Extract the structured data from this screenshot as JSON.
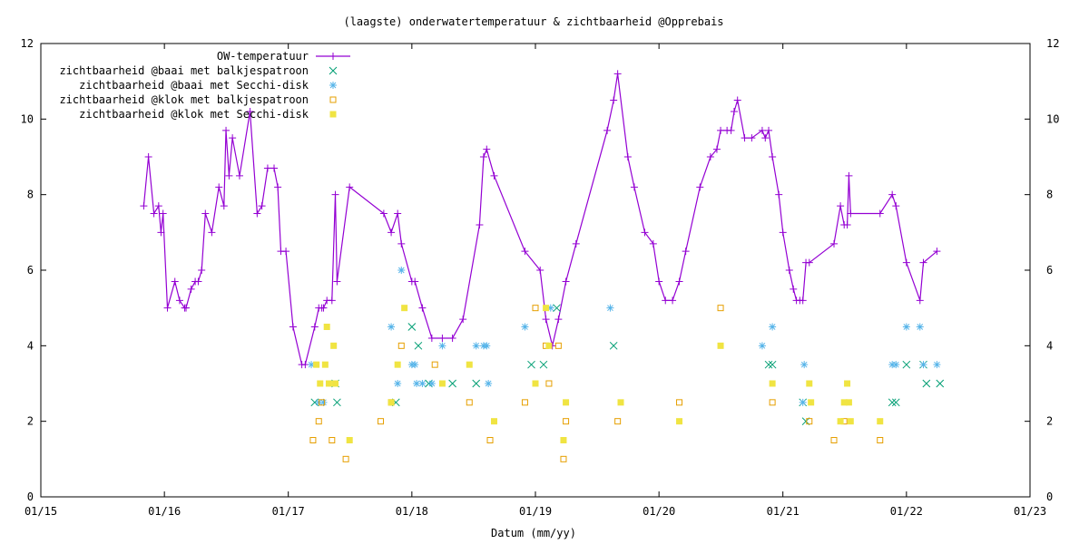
{
  "chart_data": {
    "type": "scatter",
    "title": "(laagste) onderwatertemperatuur & zichtbaarheid @Opprebais",
    "xlabel": "Datum (mm/yy)",
    "ylabel": "",
    "xticks": [
      "01/15",
      "01/16",
      "01/17",
      "01/18",
      "01/19",
      "01/20",
      "01/21",
      "01/22",
      "01/23"
    ],
    "xlim": [
      "2015-01-01",
      "2023-01-01"
    ],
    "ylim": [
      0,
      12
    ],
    "yticks": [
      0,
      2,
      4,
      6,
      8,
      10,
      12
    ],
    "y2ticks": [
      0,
      2,
      4,
      6,
      8,
      10,
      12
    ],
    "legend_position": "top-left",
    "grid": false,
    "colors": {
      "temperature": "#9400d3",
      "baai_balk": "#009e73",
      "baai_secchi": "#56b4e9",
      "klok_balk": "#e69f00",
      "klok_secchi": "#f0e442"
    },
    "series": [
      {
        "name": "OW-temperatuur",
        "style": "linespoints",
        "marker": "plus",
        "points": [
          [
            "2015-11-01",
            7.7
          ],
          [
            "2015-11-15",
            9.0
          ],
          [
            "2015-12-01",
            7.5
          ],
          [
            "2015-12-15",
            7.7
          ],
          [
            "2015-12-22",
            7.0
          ],
          [
            "2015-12-28",
            7.5
          ],
          [
            "2016-01-10",
            5.0
          ],
          [
            "2016-02-01",
            5.7
          ],
          [
            "2016-02-15",
            5.2
          ],
          [
            "2016-03-01",
            5.0
          ],
          [
            "2016-03-05",
            5.0
          ],
          [
            "2016-03-20",
            5.5
          ],
          [
            "2016-04-01",
            5.7
          ],
          [
            "2016-04-10",
            5.7
          ],
          [
            "2016-04-20",
            6.0
          ],
          [
            "2016-05-01",
            7.5
          ],
          [
            "2016-05-20",
            7.0
          ],
          [
            "2016-06-10",
            8.2
          ],
          [
            "2016-06-25",
            7.7
          ],
          [
            "2016-07-01",
            9.7
          ],
          [
            "2016-07-10",
            8.5
          ],
          [
            "2016-07-20",
            9.5
          ],
          [
            "2016-08-10",
            8.5
          ],
          [
            "2016-09-10",
            10.2
          ],
          [
            "2016-10-01",
            7.5
          ],
          [
            "2016-10-15",
            7.7
          ],
          [
            "2016-11-01",
            8.7
          ],
          [
            "2016-11-20",
            8.7
          ],
          [
            "2016-12-01",
            8.2
          ],
          [
            "2016-12-10",
            6.5
          ],
          [
            "2016-12-25",
            6.5
          ],
          [
            "2017-01-15",
            4.5
          ],
          [
            "2017-02-10",
            3.5
          ],
          [
            "2017-02-20",
            3.5
          ],
          [
            "2017-03-20",
            4.5
          ],
          [
            "2017-04-01",
            5.0
          ],
          [
            "2017-04-10",
            5.0
          ],
          [
            "2017-04-15",
            5.0
          ],
          [
            "2017-04-25",
            5.2
          ],
          [
            "2017-05-10",
            5.2
          ],
          [
            "2017-05-20",
            8.0
          ],
          [
            "2017-05-25",
            5.7
          ],
          [
            "2017-07-01",
            8.2
          ],
          [
            "2017-10-10",
            7.5
          ],
          [
            "2017-11-01",
            7.0
          ],
          [
            "2017-11-20",
            7.5
          ],
          [
            "2017-12-01",
            6.7
          ],
          [
            "2018-01-01",
            5.7
          ],
          [
            "2018-01-10",
            5.7
          ],
          [
            "2018-02-01",
            5.0
          ],
          [
            "2018-03-01",
            4.2
          ],
          [
            "2018-04-01",
            4.2
          ],
          [
            "2018-05-01",
            4.2
          ],
          [
            "2018-06-01",
            4.7
          ],
          [
            "2018-07-20",
            7.2
          ],
          [
            "2018-08-01",
            9.0
          ],
          [
            "2018-08-10",
            9.2
          ],
          [
            "2018-09-01",
            8.5
          ],
          [
            "2018-12-01",
            6.5
          ],
          [
            "2019-01-15",
            6.0
          ],
          [
            "2019-02-01",
            4.7
          ],
          [
            "2019-02-20",
            4.0
          ],
          [
            "2019-03-10",
            4.7
          ],
          [
            "2019-04-01",
            5.7
          ],
          [
            "2019-05-01",
            6.7
          ],
          [
            "2019-08-01",
            9.7
          ],
          [
            "2019-08-20",
            10.5
          ],
          [
            "2019-09-01",
            11.2
          ],
          [
            "2019-10-01",
            9.0
          ],
          [
            "2019-10-20",
            8.2
          ],
          [
            "2019-11-20",
            7.0
          ],
          [
            "2019-12-15",
            6.7
          ],
          [
            "2020-01-01",
            5.7
          ],
          [
            "2020-01-20",
            5.2
          ],
          [
            "2020-02-10",
            5.2
          ],
          [
            "2020-03-01",
            5.7
          ],
          [
            "2020-03-20",
            6.5
          ],
          [
            "2020-05-01",
            8.2
          ],
          [
            "2020-06-01",
            9.0
          ],
          [
            "2020-06-20",
            9.2
          ],
          [
            "2020-07-01",
            9.7
          ],
          [
            "2020-07-20",
            9.7
          ],
          [
            "2020-08-01",
            9.7
          ],
          [
            "2020-08-10",
            10.2
          ],
          [
            "2020-08-20",
            10.5
          ],
          [
            "2020-09-10",
            9.5
          ],
          [
            "2020-10-01",
            9.5
          ],
          [
            "2020-11-01",
            9.7
          ],
          [
            "2020-11-10",
            9.5
          ],
          [
            "2020-11-20",
            9.7
          ],
          [
            "2020-12-01",
            9.0
          ],
          [
            "2020-12-20",
            8.0
          ],
          [
            "2021-01-01",
            7.0
          ],
          [
            "2021-01-20",
            6.0
          ],
          [
            "2021-02-01",
            5.5
          ],
          [
            "2021-02-10",
            5.2
          ],
          [
            "2021-02-20",
            5.2
          ],
          [
            "2021-03-01",
            5.2
          ],
          [
            "2021-03-10",
            6.2
          ],
          [
            "2021-03-20",
            6.2
          ],
          [
            "2021-06-01",
            6.7
          ],
          [
            "2021-06-20",
            7.7
          ],
          [
            "2021-07-01",
            7.2
          ],
          [
            "2021-07-10",
            7.2
          ],
          [
            "2021-07-15",
            8.5
          ],
          [
            "2021-07-20",
            7.5
          ],
          [
            "2021-10-15",
            7.5
          ],
          [
            "2021-11-20",
            8.0
          ],
          [
            "2021-12-01",
            7.7
          ],
          [
            "2022-01-01",
            6.2
          ],
          [
            "2022-02-10",
            5.2
          ],
          [
            "2022-02-20",
            6.2
          ],
          [
            "2022-04-01",
            6.5
          ]
        ]
      },
      {
        "name": "zichtbaarheid @baai met balkjespatroon",
        "style": "points",
        "marker": "cross",
        "points": [
          [
            "2017-03-20",
            2.5
          ],
          [
            "2017-05-20",
            3.0
          ],
          [
            "2017-05-25",
            2.5
          ],
          [
            "2017-11-15",
            2.5
          ],
          [
            "2018-01-01",
            4.5
          ],
          [
            "2018-01-20",
            4.0
          ],
          [
            "2018-02-20",
            3.0
          ],
          [
            "2018-05-01",
            3.0
          ],
          [
            "2018-07-10",
            3.0
          ],
          [
            "2018-12-20",
            3.5
          ],
          [
            "2019-01-25",
            3.5
          ],
          [
            "2019-03-05",
            5.0
          ],
          [
            "2019-08-20",
            4.0
          ],
          [
            "2020-11-20",
            3.5
          ],
          [
            "2020-12-01",
            3.5
          ],
          [
            "2021-03-01",
            2.5
          ],
          [
            "2021-03-10",
            2.0
          ],
          [
            "2021-11-20",
            2.5
          ],
          [
            "2021-12-01",
            2.5
          ],
          [
            "2022-01-01",
            3.5
          ],
          [
            "2022-02-20",
            3.5
          ],
          [
            "2022-03-01",
            3.0
          ],
          [
            "2022-04-10",
            3.0
          ]
        ]
      },
      {
        "name": "zichtbaarheid @baai met Secchi-disk",
        "style": "points",
        "marker": "star",
        "points": [
          [
            "2017-03-10",
            3.5
          ],
          [
            "2017-04-01",
            2.5
          ],
          [
            "2017-04-15",
            2.5
          ],
          [
            "2017-11-01",
            4.5
          ],
          [
            "2017-11-20",
            3.0
          ],
          [
            "2017-12-01",
            6.0
          ],
          [
            "2018-01-01",
            3.5
          ],
          [
            "2018-01-10",
            3.5
          ],
          [
            "2018-01-15",
            3.0
          ],
          [
            "2018-02-01",
            3.0
          ],
          [
            "2018-03-01",
            3.0
          ],
          [
            "2018-04-01",
            4.0
          ],
          [
            "2018-07-10",
            4.0
          ],
          [
            "2018-08-01",
            4.0
          ],
          [
            "2018-08-10",
            4.0
          ],
          [
            "2018-08-15",
            3.0
          ],
          [
            "2018-12-01",
            4.5
          ],
          [
            "2019-02-15",
            5.0
          ],
          [
            "2019-08-10",
            5.0
          ],
          [
            "2020-11-01",
            4.0
          ],
          [
            "2020-12-01",
            4.5
          ],
          [
            "2021-03-01",
            2.5
          ],
          [
            "2021-03-05",
            3.5
          ],
          [
            "2021-11-20",
            3.5
          ],
          [
            "2021-12-01",
            3.5
          ],
          [
            "2022-01-01",
            4.5
          ],
          [
            "2022-02-10",
            4.5
          ],
          [
            "2022-02-20",
            3.5
          ],
          [
            "2022-04-01",
            3.5
          ]
        ]
      },
      {
        "name": "zichtbaarheid @klok met balkjespatroon",
        "style": "points",
        "marker": "open-square",
        "points": [
          [
            "2017-03-15",
            1.5
          ],
          [
            "2017-04-01",
            2.0
          ],
          [
            "2017-04-10",
            2.5
          ],
          [
            "2017-05-10",
            1.5
          ],
          [
            "2017-06-20",
            1.0
          ],
          [
            "2017-10-01",
            2.0
          ],
          [
            "2017-11-01",
            2.5
          ],
          [
            "2017-12-01",
            4.0
          ],
          [
            "2018-03-10",
            3.5
          ],
          [
            "2018-06-20",
            2.5
          ],
          [
            "2018-08-20",
            1.5
          ],
          [
            "2018-12-01",
            2.5
          ],
          [
            "2019-01-01",
            5.0
          ],
          [
            "2019-02-01",
            4.0
          ],
          [
            "2019-02-10",
            3.0
          ],
          [
            "2019-03-10",
            4.0
          ],
          [
            "2019-03-25",
            1.0
          ],
          [
            "2019-04-01",
            2.0
          ],
          [
            "2019-09-01",
            2.0
          ],
          [
            "2020-03-01",
            2.5
          ],
          [
            "2020-07-01",
            5.0
          ],
          [
            "2020-12-01",
            2.5
          ],
          [
            "2021-03-20",
            2.0
          ],
          [
            "2021-06-01",
            1.5
          ],
          [
            "2021-07-01",
            2.0
          ],
          [
            "2021-10-15",
            1.5
          ]
        ]
      },
      {
        "name": "zichtbaarheid @klok met Secchi-disk",
        "style": "points",
        "marker": "filled-square",
        "points": [
          [
            "2017-03-25",
            3.5
          ],
          [
            "2017-04-05",
            3.0
          ],
          [
            "2017-04-20",
            3.5
          ],
          [
            "2017-04-25",
            4.5
          ],
          [
            "2017-05-01",
            3.0
          ],
          [
            "2017-05-15",
            4.0
          ],
          [
            "2017-05-20",
            3.0
          ],
          [
            "2017-07-01",
            1.5
          ],
          [
            "2017-11-01",
            2.5
          ],
          [
            "2017-11-20",
            3.5
          ],
          [
            "2017-12-10",
            5.0
          ],
          [
            "2018-04-01",
            3.0
          ],
          [
            "2018-06-20",
            3.5
          ],
          [
            "2018-09-01",
            2.0
          ],
          [
            "2019-01-01",
            3.0
          ],
          [
            "2019-02-01",
            5.0
          ],
          [
            "2019-02-10",
            4.0
          ],
          [
            "2019-03-25",
            1.5
          ],
          [
            "2019-04-01",
            2.5
          ],
          [
            "2019-09-10",
            2.5
          ],
          [
            "2020-03-01",
            2.0
          ],
          [
            "2020-07-01",
            4.0
          ],
          [
            "2020-12-01",
            3.0
          ],
          [
            "2021-03-20",
            3.0
          ],
          [
            "2021-03-25",
            2.5
          ],
          [
            "2021-06-20",
            2.0
          ],
          [
            "2021-07-01",
            2.5
          ],
          [
            "2021-07-10",
            3.0
          ],
          [
            "2021-07-15",
            2.5
          ],
          [
            "2021-07-20",
            2.0
          ],
          [
            "2021-10-15",
            2.0
          ]
        ]
      }
    ]
  }
}
